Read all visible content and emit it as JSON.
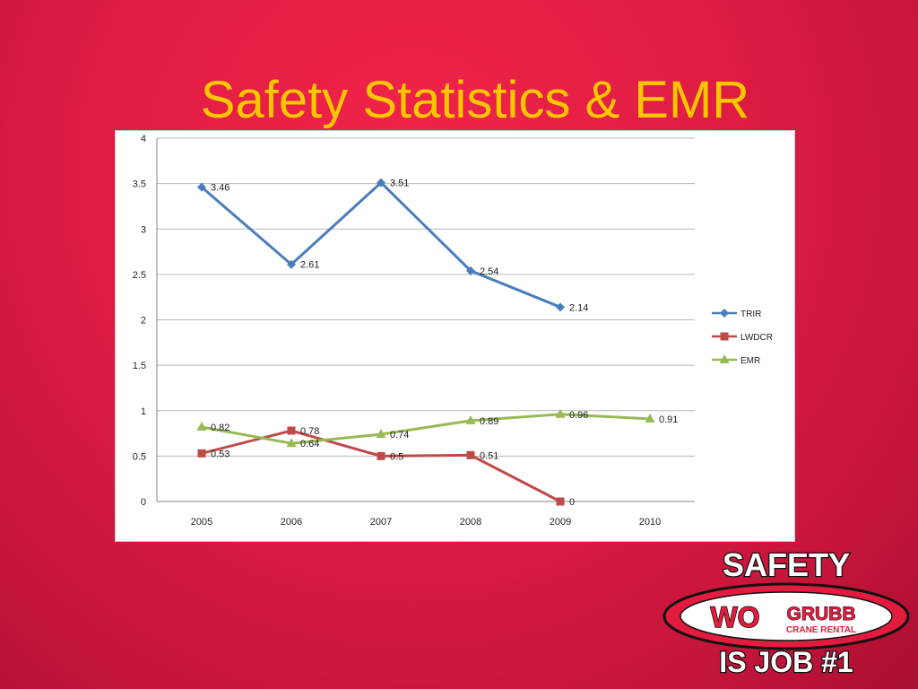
{
  "slide": {
    "title": "Safety Statistics & EMR"
  },
  "chart_data": {
    "type": "line",
    "categories": [
      "2005",
      "2006",
      "2007",
      "2008",
      "2009",
      "2010"
    ],
    "ylim": [
      0,
      4
    ],
    "yticks": [
      0,
      0.5,
      1,
      1.5,
      2,
      2.5,
      3,
      3.5,
      4
    ],
    "grid": true,
    "legend_position": "right",
    "series": [
      {
        "name": "TRIR",
        "color": "#4a7ebb",
        "marker": "diamond",
        "values": [
          3.46,
          2.61,
          3.51,
          2.54,
          2.14,
          null
        ],
        "labels": [
          "3.46",
          "2.61",
          "3.51",
          "2.54",
          "2.14",
          ""
        ]
      },
      {
        "name": "LWDCR",
        "color": "#be4b48",
        "marker": "square",
        "values": [
          0.53,
          0.78,
          0.5,
          0.51,
          0,
          null
        ],
        "labels": [
          "0.53",
          "0.78",
          "0.5",
          "0.51",
          "0",
          ""
        ]
      },
      {
        "name": "EMR",
        "color": "#98b954",
        "marker": "triangle",
        "values": [
          0.82,
          0.64,
          0.74,
          0.89,
          0.96,
          0.91
        ],
        "labels": [
          "0.82",
          "0.64",
          "0.74",
          "0.89",
          "0.96",
          "0.91"
        ]
      }
    ]
  },
  "logo": {
    "top_text": "SAFETY",
    "brand_wo": "WO",
    "brand_name": "GRUBB",
    "brand_sub": "CRANE RENTAL",
    "bottom_text": "IS JOB #1"
  }
}
